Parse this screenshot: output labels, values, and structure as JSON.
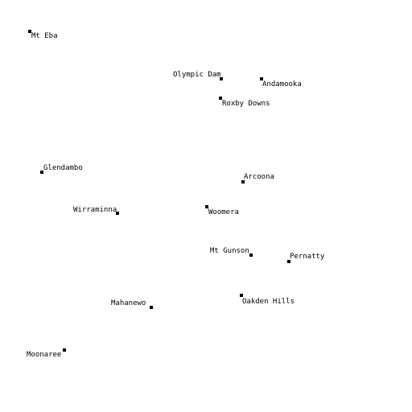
{
  "map": {
    "places": [
      {
        "name": "Mt Eba"
      },
      {
        "name": "Olympic Dam"
      },
      {
        "name": "Andamooka"
      },
      {
        "name": "Roxby Downs"
      },
      {
        "name": "Glendambo"
      },
      {
        "name": "Arcoona"
      },
      {
        "name": "Wirraminna"
      },
      {
        "name": "Woomera"
      },
      {
        "name": "Mt Gunson"
      },
      {
        "name": "Pernatty"
      },
      {
        "name": "Oakden Hills"
      },
      {
        "name": "Mahanewo"
      },
      {
        "name": "Moonaree"
      }
    ]
  }
}
